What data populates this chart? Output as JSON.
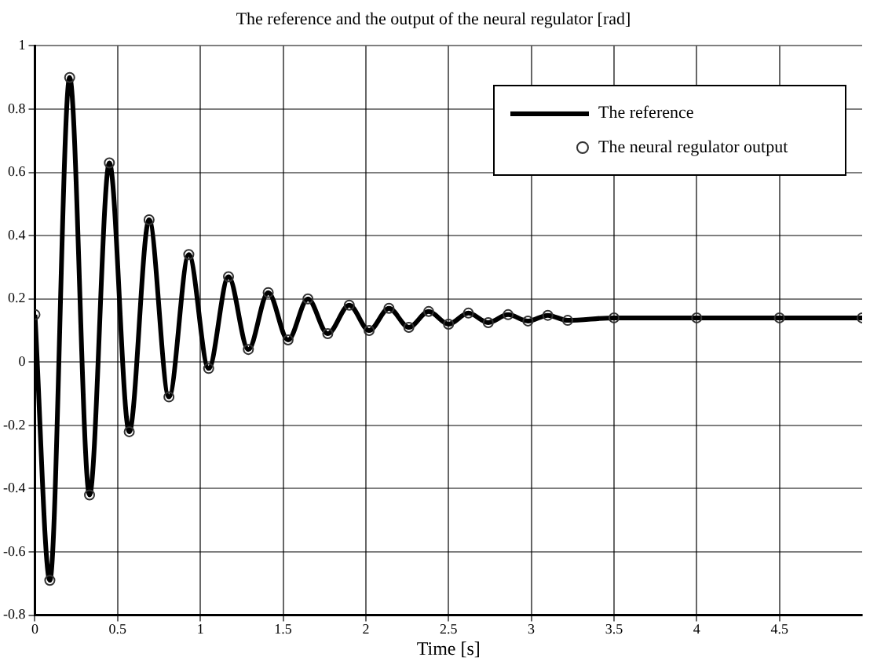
{
  "chart_data": {
    "type": "line",
    "title": "The reference and the output of the neural regulator [rad]",
    "xlabel": "Time [s]",
    "x": [
      0,
      0.09,
      0.21,
      0.33,
      0.45,
      0.57,
      0.69,
      0.81,
      0.93,
      1.05,
      1.17,
      1.29,
      1.41,
      1.53,
      1.65,
      1.77,
      1.9,
      2.02,
      2.14,
      2.26,
      2.38,
      2.5,
      2.62,
      2.74,
      2.86,
      2.98,
      3.1,
      3.22,
      3.5,
      4,
      4.5,
      5
    ],
    "series": [
      {
        "name": "The reference",
        "color": "#000000",
        "marker": "none",
        "values": [
          0.15,
          -0.69,
          0.9,
          -0.42,
          0.63,
          -0.22,
          0.45,
          -0.11,
          0.34,
          -0.02,
          0.27,
          0.04,
          0.22,
          0.07,
          0.2,
          0.09,
          0.18,
          0.1,
          0.17,
          0.11,
          0.16,
          0.12,
          0.155,
          0.125,
          0.15,
          0.13,
          0.148,
          0.132,
          0.14,
          0.14,
          0.14,
          0.14
        ]
      },
      {
        "name": "The neural regulator output",
        "type": "scatter",
        "color": "#333333",
        "marker": "circle",
        "values": [
          0.15,
          -0.69,
          0.9,
          -0.42,
          0.63,
          -0.22,
          0.45,
          -0.11,
          0.34,
          -0.02,
          0.27,
          0.04,
          0.22,
          0.07,
          0.2,
          0.09,
          0.18,
          0.1,
          0.17,
          0.11,
          0.16,
          0.12,
          0.155,
          0.125,
          0.15,
          0.13,
          0.148,
          0.132,
          0.14,
          0.14,
          0.14,
          0.14
        ]
      }
    ],
    "xlim": [
      0,
      5
    ],
    "xticks": [
      0,
      0.5,
      1,
      1.5,
      2,
      2.5,
      3,
      3.5,
      4,
      4.5
    ],
    "ylim": [
      -0.8,
      1
    ],
    "yticks": [
      -0.8,
      -0.6,
      -0.4,
      -0.2,
      0,
      0.2,
      0.4,
      0.6,
      0.8,
      1
    ],
    "grid": true,
    "legend": "top right"
  }
}
